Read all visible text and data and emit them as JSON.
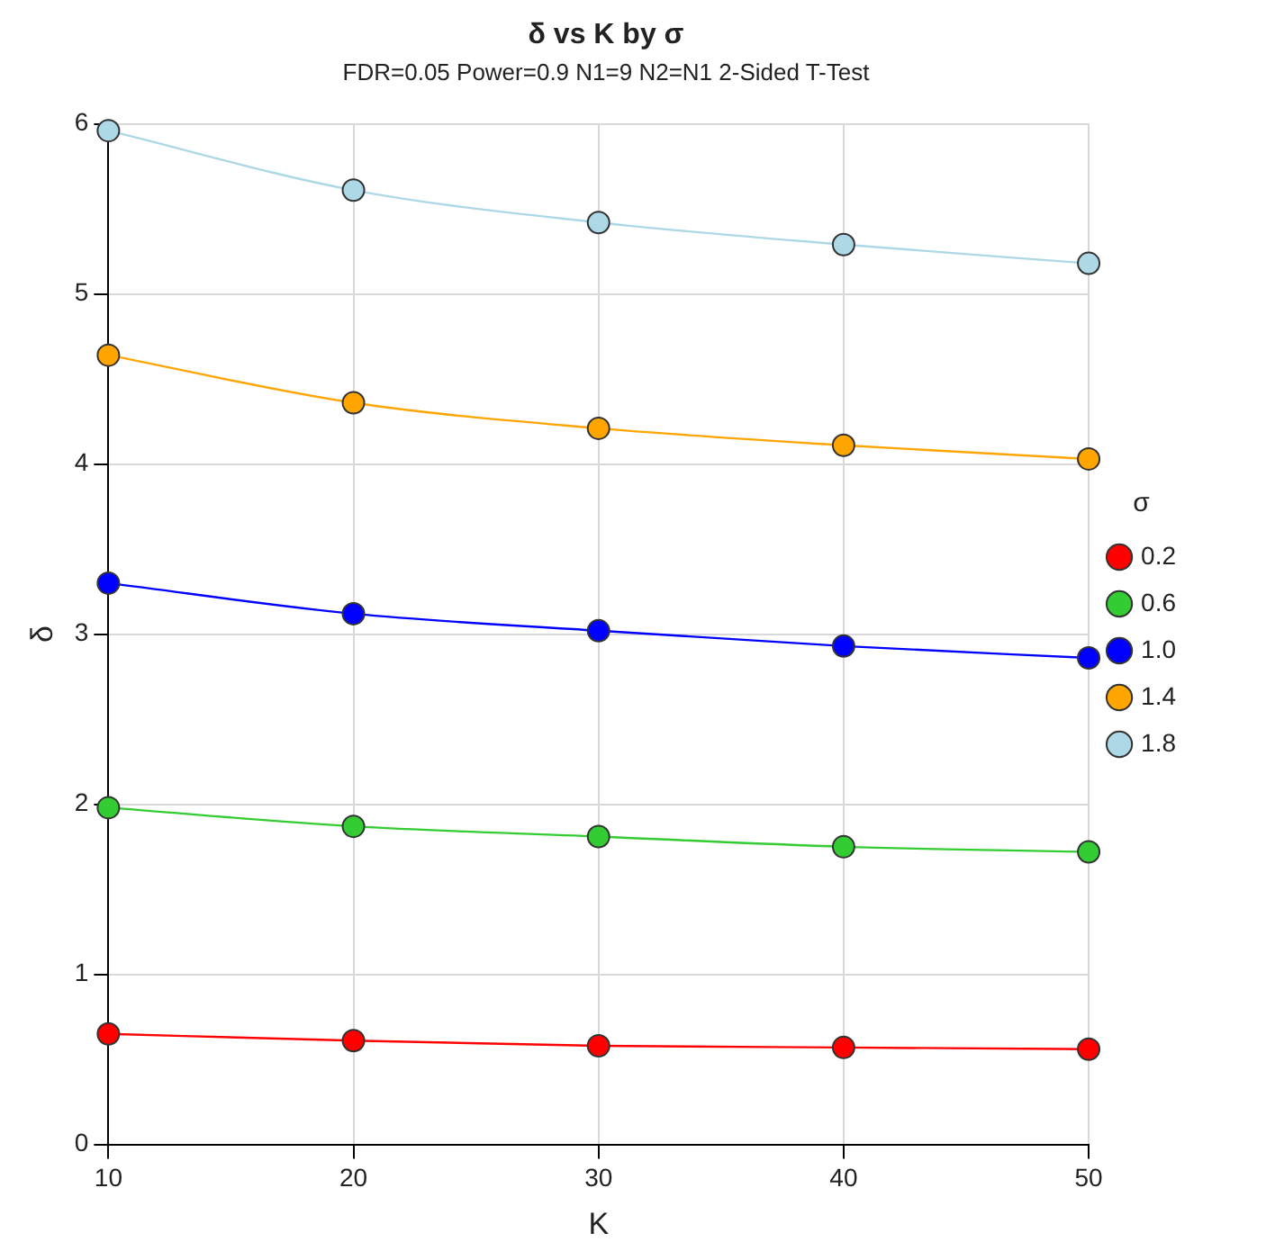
{
  "chart_data": {
    "type": "line",
    "title": "δ vs K by σ",
    "subtitle": "FDR=0.05 Power=0.9 N1=9 N2=N1 2-Sided T-Test",
    "xlabel": "K",
    "ylabel": "δ",
    "legend_title": "σ",
    "x": [
      10,
      20,
      30,
      40,
      50
    ],
    "series": [
      {
        "name": "0.2",
        "color": "#ff0000",
        "values": [
          0.65,
          0.61,
          0.58,
          0.57,
          0.56
        ]
      },
      {
        "name": "0.6",
        "color": "#33cc33",
        "values": [
          1.98,
          1.87,
          1.81,
          1.75,
          1.72
        ]
      },
      {
        "name": "1.0",
        "color": "#0000ff",
        "values": [
          3.3,
          3.12,
          3.02,
          2.93,
          2.86
        ]
      },
      {
        "name": "1.4",
        "color": "#ffa500",
        "values": [
          4.64,
          4.36,
          4.21,
          4.11,
          4.03
        ]
      },
      {
        "name": "1.8",
        "color": "#add8e6",
        "values": [
          5.96,
          5.61,
          5.42,
          5.29,
          5.18
        ]
      }
    ],
    "xlim": [
      10,
      50
    ],
    "xticks": [
      10,
      20,
      30,
      40,
      50
    ],
    "ylim": [
      0,
      6
    ],
    "yticks": [
      0,
      1,
      2,
      3,
      4,
      5,
      6
    ],
    "grid": true,
    "legend": "right",
    "marker": "circle",
    "line_style": "solid"
  }
}
